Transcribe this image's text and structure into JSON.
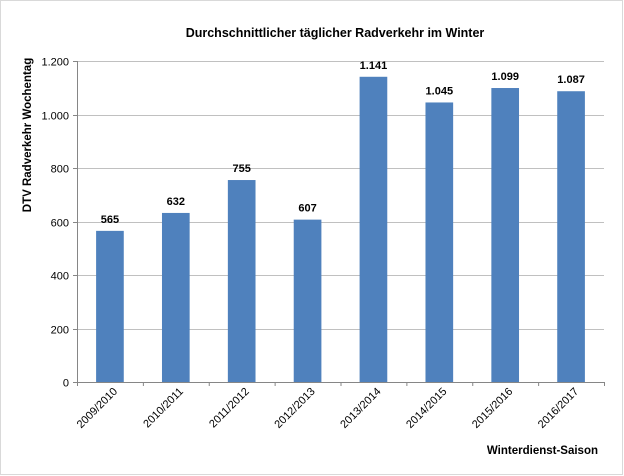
{
  "chart_data": {
    "type": "bar",
    "title": "Durchschnittlicher täglicher Radverkehr im Winter",
    "xlabel": "Winterdienst-Saison",
    "ylabel": "DTV Radverkehr Wochentag",
    "categories": [
      "2009/2010",
      "2010/2011",
      "2011/2012",
      "2012/2013",
      "2013/2014",
      "2014/2015",
      "2015/2016",
      "2016/2017"
    ],
    "values": [
      565,
      632,
      755,
      607,
      1141,
      1045,
      1099,
      1087
    ],
    "value_labels": [
      "565",
      "632",
      "755",
      "607",
      "1.141",
      "1.045",
      "1.099",
      "1.087"
    ],
    "ylim": [
      0,
      1200
    ],
    "y_ticks": [
      0,
      200,
      400,
      600,
      800,
      1000,
      1200
    ],
    "y_tick_labels": [
      "0",
      "200",
      "400",
      "600",
      "800",
      "1.000",
      "1.200"
    ],
    "grid": true,
    "legend": "none",
    "bar_color": "#4f81bd",
    "grid_color": "#c0c0c0"
  }
}
